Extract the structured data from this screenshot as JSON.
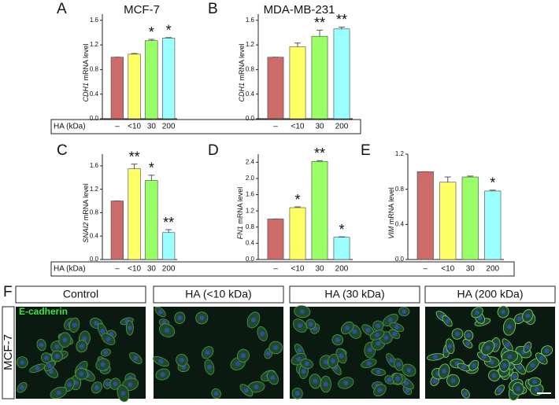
{
  "chart_data": [
    {
      "type": "bar",
      "panel": "A",
      "title": "MCF-7",
      "ylabel": {
        "gene": "CDH1",
        "text": "mRNA level"
      },
      "xlabel": "HA (kDa)",
      "categories": [
        "–",
        "<10",
        "30",
        "200"
      ],
      "values": [
        1.0,
        1.05,
        1.27,
        1.31
      ],
      "errors": [
        0,
        0.01,
        0.02,
        0.01
      ],
      "annotations": [
        null,
        null,
        "*",
        "*"
      ],
      "colors": [
        "#cd6a6a",
        "#ffff66",
        "#99ff66",
        "#99ffff"
      ],
      "ylim": [
        0,
        1.7
      ],
      "yticks": [
        {
          "value": 0,
          "label": "0.0"
        },
        0.4,
        0.8,
        1.2,
        1.6
      ]
    },
    {
      "type": "bar",
      "panel": "B",
      "title": "MDA-MB-231",
      "ylabel": {
        "gene": "CDH1",
        "text": "mRNA level"
      },
      "categories": [
        "–",
        "<10",
        "30",
        "200"
      ],
      "values": [
        1.0,
        1.17,
        1.34,
        1.46
      ],
      "errors": [
        0,
        0.06,
        0.1,
        0.03
      ],
      "annotations": [
        null,
        null,
        "**",
        "**"
      ],
      "colors": [
        "#cd6a6a",
        "#ffff66",
        "#99ff66",
        "#99ffff"
      ],
      "ylim": [
        0,
        1.7
      ],
      "yticks": [
        {
          "value": 0,
          "label": "0.0"
        },
        0.4,
        0.8,
        1.2,
        1.6
      ]
    },
    {
      "type": "bar",
      "panel": "C",
      "ylabel": {
        "gene": "SNAI2",
        "text": "mRNA level"
      },
      "xlabel": "HA (kDa)",
      "categories": [
        "–",
        "<10",
        "30",
        "200"
      ],
      "values": [
        1.0,
        1.55,
        1.35,
        0.46
      ],
      "errors": [
        0,
        0.08,
        0.09,
        0.05
      ],
      "annotations": [
        null,
        "**",
        "*",
        "**"
      ],
      "colors": [
        "#cd6a6a",
        "#ffff66",
        "#99ff66",
        "#99ffff"
      ],
      "ylim": [
        0,
        1.8
      ],
      "yticks": [
        {
          "value": 0,
          "label": "0.0"
        },
        0.4,
        0.8,
        1.2,
        1.6
      ]
    },
    {
      "type": "bar",
      "panel": "D",
      "ylabel": {
        "gene": "FN1",
        "text": "mRNA level"
      },
      "categories": [
        "–",
        "<10",
        "30",
        "200"
      ],
      "values": [
        1.0,
        1.28,
        2.42,
        0.55
      ],
      "errors": [
        0,
        0.02,
        0.02,
        0.01
      ],
      "annotations": [
        null,
        "*",
        "**",
        "*"
      ],
      "colors": [
        "#cd6a6a",
        "#ffff66",
        "#99ff66",
        "#99ffff"
      ],
      "ylim": [
        0,
        2.6
      ],
      "yticks": [
        {
          "value": 0,
          "label": "0.0"
        },
        0.4,
        0.8,
        1.2,
        1.6,
        {
          "value": 2,
          "label": "2.0"
        },
        2.4
      ]
    },
    {
      "type": "bar",
      "panel": "E",
      "ylabel": {
        "gene": "VIM",
        "text": "mRNA level"
      },
      "categories": [
        "–",
        "<10",
        "30",
        "200"
      ],
      "values": [
        1.0,
        0.88,
        0.94,
        0.78
      ],
      "errors": [
        0,
        0.06,
        0.01,
        0.01
      ],
      "annotations": [
        null,
        null,
        null,
        "*"
      ],
      "colors": [
        "#cd6a6a",
        "#ffff66",
        "#99ff66",
        "#99ffff"
      ],
      "ylim": [
        0,
        1.2
      ],
      "yticks": [
        {
          "value": 0,
          "label": "0.0"
        },
        0.4,
        0.8,
        1.2
      ]
    }
  ],
  "image_panel": {
    "letter": "F",
    "row_label": "MCF-7",
    "stain_label": "E-cadherin",
    "columns": [
      "Control",
      "HA (<10 kDa)",
      "HA (30 kDa)",
      "HA (200 kDa)"
    ]
  }
}
